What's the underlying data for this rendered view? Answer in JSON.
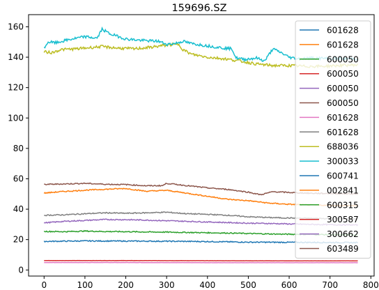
{
  "chart_data": {
    "type": "line",
    "title": "159696.SZ",
    "xlabel": "",
    "ylabel": "",
    "xlim": [
      -38,
      808
    ],
    "ylim": [
      -4,
      168
    ],
    "xticks": [
      0,
      100,
      200,
      300,
      400,
      500,
      600,
      700,
      800
    ],
    "yticks": [
      0,
      20,
      40,
      60,
      80,
      100,
      120,
      140,
      160
    ],
    "grid": false,
    "legend_position": "upper right",
    "x_count": 770,
    "series": [
      {
        "name": "601628",
        "color": "#1f77b4",
        "points": [
          [
            0,
            18.8
          ],
          [
            100,
            19.1
          ],
          [
            200,
            19.0
          ],
          [
            300,
            18.9
          ],
          [
            400,
            18.7
          ],
          [
            500,
            18.3
          ],
          [
            600,
            18.2
          ],
          [
            700,
            18.1
          ],
          [
            769,
            18.0
          ]
        ]
      },
      {
        "name": "601628",
        "color": "#ff7f0e",
        "points": [
          [
            0,
            50.6
          ],
          [
            40,
            51.5
          ],
          [
            100,
            52.5
          ],
          [
            150,
            53.1
          ],
          [
            200,
            53.6
          ],
          [
            250,
            51.8
          ],
          [
            300,
            52.4
          ],
          [
            350,
            50.5
          ],
          [
            400,
            48.5
          ],
          [
            450,
            46.5
          ],
          [
            500,
            45.6
          ],
          [
            550,
            44.0
          ],
          [
            600,
            43.2
          ],
          [
            650,
            42.8
          ],
          [
            700,
            42.5
          ],
          [
            769,
            42.3
          ]
        ]
      },
      {
        "name": "600050",
        "color": "#2ca02c",
        "points": [
          [
            0,
            25.4
          ],
          [
            50,
            25.2
          ],
          [
            100,
            25.6
          ],
          [
            150,
            25.3
          ],
          [
            200,
            25.2
          ],
          [
            250,
            25.0
          ],
          [
            300,
            24.9
          ],
          [
            350,
            24.7
          ],
          [
            400,
            24.5
          ],
          [
            450,
            24.3
          ],
          [
            500,
            24.0
          ],
          [
            550,
            23.7
          ],
          [
            600,
            23.5
          ],
          [
            650,
            23.4
          ],
          [
            700,
            23.2
          ],
          [
            769,
            23.0
          ]
        ]
      },
      {
        "name": "600050",
        "color": "#d62728",
        "points": [
          [
            0,
            6.2
          ],
          [
            200,
            6.2
          ],
          [
            400,
            6.1
          ],
          [
            600,
            6.0
          ],
          [
            769,
            6.0
          ]
        ]
      },
      {
        "name": "600050",
        "color": "#9467bd",
        "points": [
          [
            0,
            31.0
          ],
          [
            50,
            32.0
          ],
          [
            100,
            32.6
          ],
          [
            150,
            33.2
          ],
          [
            200,
            33.1
          ],
          [
            250,
            32.8
          ],
          [
            300,
            32.4
          ],
          [
            350,
            32.0
          ],
          [
            400,
            31.6
          ],
          [
            450,
            31.2
          ],
          [
            500,
            30.8
          ],
          [
            550,
            30.6
          ],
          [
            600,
            30.3
          ],
          [
            650,
            30.0
          ],
          [
            700,
            29.8
          ],
          [
            769,
            29.6
          ]
        ]
      },
      {
        "name": "600050",
        "color": "#8c564b",
        "points": [
          [
            0,
            56.3
          ],
          [
            50,
            56.6
          ],
          [
            100,
            57.0
          ],
          [
            150,
            56.4
          ],
          [
            200,
            56.2
          ],
          [
            250,
            55.4
          ],
          [
            290,
            55.5
          ],
          [
            300,
            57.0
          ],
          [
            350,
            55.5
          ],
          [
            400,
            54.0
          ],
          [
            450,
            53.0
          ],
          [
            500,
            51.2
          ],
          [
            530,
            49.5
          ],
          [
            560,
            51.5
          ],
          [
            600,
            51.0
          ],
          [
            650,
            50.5
          ],
          [
            700,
            50.3
          ],
          [
            769,
            50.0
          ]
        ]
      },
      {
        "name": "601628",
        "color": "#e377c2",
        "points": [
          [
            0,
            4.9
          ],
          [
            200,
            4.9
          ],
          [
            400,
            4.8
          ],
          [
            600,
            4.8
          ],
          [
            769,
            4.8
          ]
        ]
      },
      {
        "name": "601628",
        "color": "#7f7f7f",
        "points": [
          [
            0,
            36.0
          ],
          [
            50,
            36.3
          ],
          [
            100,
            37.0
          ],
          [
            150,
            37.6
          ],
          [
            200,
            37.3
          ],
          [
            250,
            37.6
          ],
          [
            300,
            38.0
          ],
          [
            350,
            37.0
          ],
          [
            400,
            36.6
          ],
          [
            450,
            36.0
          ],
          [
            500,
            35.0
          ],
          [
            550,
            34.5
          ],
          [
            600,
            34.2
          ],
          [
            650,
            34.0
          ],
          [
            700,
            33.8
          ],
          [
            769,
            33.5
          ]
        ]
      },
      {
        "name": "688036",
        "color": "#bcbd22",
        "points": [
          [
            0,
            143.5
          ],
          [
            20,
            143.0
          ],
          [
            40,
            145.0
          ],
          [
            80,
            145.5
          ],
          [
            100,
            146.0
          ],
          [
            140,
            147.0
          ],
          [
            180,
            146.0
          ],
          [
            220,
            145.5
          ],
          [
            260,
            146.5
          ],
          [
            300,
            148.0
          ],
          [
            330,
            148.5
          ],
          [
            340,
            145.0
          ],
          [
            360,
            142.0
          ],
          [
            400,
            140.0
          ],
          [
            440,
            139.0
          ],
          [
            480,
            137.5
          ],
          [
            520,
            135.5
          ],
          [
            560,
            134.5
          ],
          [
            600,
            134.5
          ],
          [
            640,
            134.0
          ],
          [
            680,
            134.0
          ],
          [
            720,
            134.5
          ],
          [
            769,
            135.0
          ]
        ]
      },
      {
        "name": "300033",
        "color": "#17becf",
        "points": [
          [
            0,
            146.0
          ],
          [
            10,
            150.0
          ],
          [
            30,
            149.5
          ],
          [
            60,
            151.5
          ],
          [
            100,
            153.5
          ],
          [
            130,
            152.5
          ],
          [
            142,
            158.5
          ],
          [
            160,
            155.5
          ],
          [
            200,
            152.0
          ],
          [
            240,
            151.0
          ],
          [
            280,
            150.5
          ],
          [
            300,
            148.5
          ],
          [
            320,
            149.0
          ],
          [
            340,
            150.5
          ],
          [
            360,
            149.0
          ],
          [
            400,
            147.5
          ],
          [
            440,
            146.0
          ],
          [
            460,
            145.5
          ],
          [
            470,
            139.5
          ],
          [
            490,
            138.5
          ],
          [
            520,
            139.5
          ],
          [
            540,
            137.5
          ],
          [
            560,
            145.5
          ],
          [
            580,
            143.0
          ],
          [
            600,
            140.0
          ],
          [
            620,
            139.0
          ],
          [
            660,
            139.5
          ],
          [
            700,
            139.0
          ],
          [
            769,
            139.0
          ]
        ]
      },
      {
        "name": "600741",
        "color": "#1f77b4",
        "points": [
          [
            0,
            18.8
          ],
          [
            769,
            18.8
          ]
        ]
      },
      {
        "name": "002841",
        "color": "#ff7f0e",
        "points": [
          [
            0,
            50.6
          ],
          [
            769,
            50.6
          ]
        ]
      },
      {
        "name": "600315",
        "color": "#2ca02c",
        "points": [
          [
            0,
            25.4
          ],
          [
            769,
            25.4
          ]
        ]
      },
      {
        "name": "300587",
        "color": "#d62728",
        "points": [
          [
            0,
            6.2
          ],
          [
            769,
            6.2
          ]
        ]
      },
      {
        "name": "300662",
        "color": "#9467bd",
        "points": [
          [
            0,
            31.0
          ],
          [
            769,
            31.0
          ]
        ]
      },
      {
        "name": "603489",
        "color": "#8c564b",
        "points": [
          [
            0,
            56.3
          ],
          [
            769,
            56.3
          ]
        ]
      }
    ]
  }
}
